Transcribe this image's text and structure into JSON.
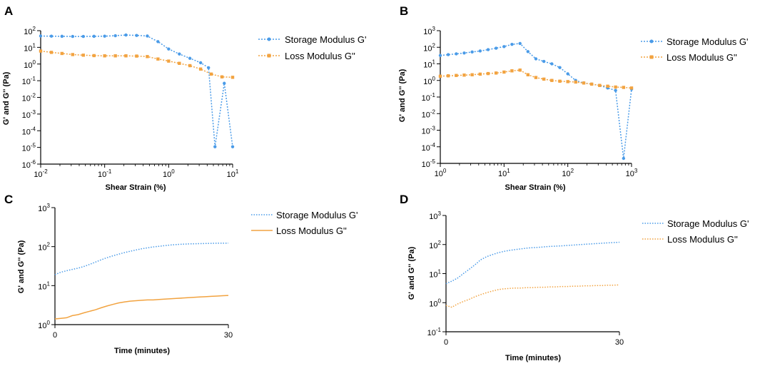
{
  "colors": {
    "storage": "#4a9be8",
    "loss": "#f2a340",
    "axis": "#000000"
  },
  "chart_data": [
    {
      "panel": "A",
      "type": "line",
      "xscale": "log",
      "yscale": "log",
      "xlabel": "Shear Strain (%)",
      "ylabel": "G' and G'' (Pa)",
      "xlim": [
        0.01,
        10
      ],
      "ylim": [
        1e-06,
        100
      ],
      "xticks": [
        {
          "base": "10",
          "exp": "-2"
        },
        {
          "base": "10",
          "exp": "-1"
        },
        {
          "base": "10",
          "exp": "0"
        },
        {
          "base": "10",
          "exp": "1"
        }
      ],
      "yticks": [
        {
          "base": "10",
          "exp": "2"
        },
        {
          "base": "10",
          "exp": "1"
        },
        {
          "base": "10",
          "exp": "0"
        },
        {
          "base": "10",
          "exp": "-1"
        },
        {
          "base": "10",
          "exp": "-2"
        },
        {
          "base": "10",
          "exp": "-3"
        },
        {
          "base": "10",
          "exp": "-4"
        },
        {
          "base": "10",
          "exp": "-5"
        },
        {
          "base": "10",
          "exp": "-6"
        }
      ],
      "markers": true,
      "series": [
        {
          "name": "Storage Modulus G'",
          "color_key": "storage",
          "x": [
            0.01,
            0.0147,
            0.0215,
            0.0316,
            0.0464,
            0.0681,
            0.1,
            0.147,
            0.215,
            0.316,
            0.464,
            0.681,
            1.0,
            1.47,
            2.15,
            3.16,
            4.2,
            5.3,
            7.4,
            10
          ],
          "y": [
            48,
            47,
            46,
            45,
            45,
            46,
            47,
            50,
            55,
            52,
            48,
            22,
            8,
            4,
            2.2,
            1.2,
            0.6,
            1.1e-05,
            0.07,
            1.1e-05
          ]
        },
        {
          "name": "Loss Modulus G''",
          "color_key": "loss",
          "x": [
            0.01,
            0.0147,
            0.0215,
            0.0316,
            0.0464,
            0.0681,
            0.1,
            0.147,
            0.215,
            0.316,
            0.464,
            0.681,
            1.0,
            1.47,
            2.15,
            3.16,
            4.64,
            6.81,
            10
          ],
          "y": [
            6,
            5,
            4.3,
            3.7,
            3.4,
            3.2,
            3.1,
            3.1,
            3.1,
            3.0,
            2.8,
            2.0,
            1.5,
            1.1,
            0.8,
            0.5,
            0.25,
            0.17,
            0.16
          ]
        }
      ]
    },
    {
      "panel": "B",
      "type": "line",
      "xscale": "log",
      "yscale": "log",
      "xlabel": "Shear Strain (%)",
      "ylabel": "G' and G'' (Pa)",
      "xlim": [
        1,
        1000
      ],
      "ylim": [
        1e-05,
        1000
      ],
      "xticks": [
        {
          "base": "10",
          "exp": "0"
        },
        {
          "base": "10",
          "exp": "1"
        },
        {
          "base": "10",
          "exp": "2"
        },
        {
          "base": "10",
          "exp": "3"
        }
      ],
      "yticks": [
        {
          "base": "10",
          "exp": "3"
        },
        {
          "base": "10",
          "exp": "2"
        },
        {
          "base": "10",
          "exp": "1"
        },
        {
          "base": "10",
          "exp": "0"
        },
        {
          "base": "10",
          "exp": "-1"
        },
        {
          "base": "10",
          "exp": "-2"
        },
        {
          "base": "10",
          "exp": "-3"
        },
        {
          "base": "10",
          "exp": "-4"
        },
        {
          "base": "10",
          "exp": "-5"
        }
      ],
      "markers": true,
      "series": [
        {
          "name": "Storage Modulus G'",
          "color_key": "storage",
          "x": [
            1,
            1.33,
            1.78,
            2.37,
            3.16,
            4.22,
            5.62,
            7.5,
            10,
            13.3,
            17.8,
            23.7,
            31.6,
            42.2,
            56.2,
            75,
            100,
            133,
            178,
            237,
            316,
            422,
            562,
            750,
            1000
          ],
          "y": [
            32,
            36,
            40,
            45,
            52,
            60,
            72,
            88,
            110,
            150,
            170,
            55,
            20,
            14,
            10,
            6,
            2.5,
            1,
            0.7,
            0.6,
            0.5,
            0.35,
            0.25,
            2e-05,
            0.3
          ]
        },
        {
          "name": "Loss Modulus G''",
          "color_key": "loss",
          "x": [
            1,
            1.33,
            1.78,
            2.37,
            3.16,
            4.22,
            5.62,
            7.5,
            10,
            13.3,
            17.8,
            23.7,
            31.6,
            42.2,
            56.2,
            75,
            100,
            133,
            178,
            237,
            316,
            422,
            562,
            750,
            1000
          ],
          "y": [
            1.8,
            1.9,
            2.0,
            2.1,
            2.2,
            2.4,
            2.6,
            2.8,
            3.2,
            3.8,
            4.2,
            2.2,
            1.5,
            1.2,
            1.0,
            0.9,
            0.85,
            0.8,
            0.7,
            0.6,
            0.5,
            0.45,
            0.4,
            0.38,
            0.35
          ]
        }
      ]
    },
    {
      "panel": "C",
      "type": "line",
      "xscale": "linear",
      "yscale": "log",
      "xlabel": "Time (minutes)",
      "ylabel": "G' and G'' (Pa)",
      "xlim": [
        0,
        30
      ],
      "ylim": [
        1,
        1000
      ],
      "xticks": [
        {
          "base": "0",
          "exp": ""
        },
        {
          "base": "30",
          "exp": ""
        }
      ],
      "yticks": [
        {
          "base": "10",
          "exp": "3"
        },
        {
          "base": "10",
          "exp": "2"
        },
        {
          "base": "10",
          "exp": "1"
        },
        {
          "base": "10",
          "exp": "0"
        }
      ],
      "markers": false,
      "series": [
        {
          "name": "Storage Modulus G'",
          "color_key": "storage",
          "x": [
            0,
            1,
            2,
            3,
            4,
            5,
            6,
            7,
            8,
            9,
            10,
            11,
            12,
            13,
            14,
            15,
            16,
            17,
            18,
            19,
            20,
            21,
            22,
            23,
            24,
            25,
            26,
            27,
            28,
            29,
            30
          ],
          "y": [
            19,
            22,
            24,
            26,
            28,
            31,
            35,
            40,
            46,
            52,
            58,
            64,
            70,
            76,
            82,
            88,
            93,
            98,
            102,
            106,
            110,
            113,
            115,
            117,
            118,
            119,
            120,
            121,
            122,
            122,
            123
          ]
        },
        {
          "name": "Loss Modulus G''",
          "color_key": "loss",
          "x": [
            0,
            1,
            2,
            3,
            4,
            5,
            6,
            7,
            8,
            9,
            10,
            11,
            12,
            13,
            14,
            15,
            16,
            17,
            18,
            19,
            20,
            21,
            22,
            23,
            24,
            25,
            26,
            27,
            28,
            29,
            30
          ],
          "y": [
            1.4,
            1.45,
            1.5,
            1.7,
            1.8,
            2.0,
            2.2,
            2.4,
            2.7,
            3.0,
            3.3,
            3.6,
            3.8,
            4.0,
            4.1,
            4.2,
            4.3,
            4.3,
            4.4,
            4.5,
            4.6,
            4.7,
            4.8,
            4.9,
            5.0,
            5.1,
            5.2,
            5.3,
            5.4,
            5.5,
            5.6
          ]
        }
      ]
    },
    {
      "panel": "D",
      "type": "line",
      "xscale": "linear",
      "yscale": "log",
      "xlabel": "Time (minutes)",
      "ylabel": "G' and G'' (Pa)",
      "xlim": [
        0,
        30
      ],
      "ylim": [
        0.1,
        1000
      ],
      "xticks": [
        {
          "base": "0",
          "exp": ""
        },
        {
          "base": "30",
          "exp": ""
        }
      ],
      "yticks": [
        {
          "base": "10",
          "exp": "3"
        },
        {
          "base": "10",
          "exp": "2"
        },
        {
          "base": "10",
          "exp": "1"
        },
        {
          "base": "10",
          "exp": "0"
        },
        {
          "base": "10",
          "exp": "-1"
        }
      ],
      "markers": false,
      "series": [
        {
          "name": "Storage Modulus G'",
          "color_key": "storage",
          "x": [
            0,
            1,
            2,
            3,
            4,
            5,
            6,
            7,
            8,
            9,
            10,
            11,
            12,
            13,
            14,
            15,
            16,
            17,
            18,
            19,
            20,
            21,
            22,
            23,
            24,
            25,
            26,
            27,
            28,
            29,
            30
          ],
          "y": [
            4.5,
            5.5,
            7,
            10,
            14,
            20,
            30,
            38,
            45,
            52,
            58,
            63,
            67,
            71,
            75,
            78,
            80,
            83,
            86,
            88,
            90,
            93,
            96,
            99,
            102,
            105,
            108,
            111,
            114,
            117,
            120
          ]
        },
        {
          "name": "Loss Modulus G''",
          "color_key": "loss",
          "x": [
            0,
            1,
            2,
            3,
            4,
            5,
            6,
            7,
            8,
            9,
            10,
            11,
            12,
            13,
            14,
            15,
            16,
            17,
            18,
            19,
            20,
            21,
            22,
            23,
            24,
            25,
            26,
            27,
            28,
            29,
            30
          ],
          "y": [
            0.8,
            0.7,
            0.9,
            1.1,
            1.3,
            1.6,
            1.9,
            2.2,
            2.5,
            2.8,
            3.0,
            3.1,
            3.2,
            3.2,
            3.3,
            3.3,
            3.4,
            3.4,
            3.5,
            3.5,
            3.6,
            3.6,
            3.7,
            3.7,
            3.8,
            3.8,
            3.9,
            3.9,
            4.0,
            4.0,
            4.1
          ]
        }
      ]
    }
  ]
}
